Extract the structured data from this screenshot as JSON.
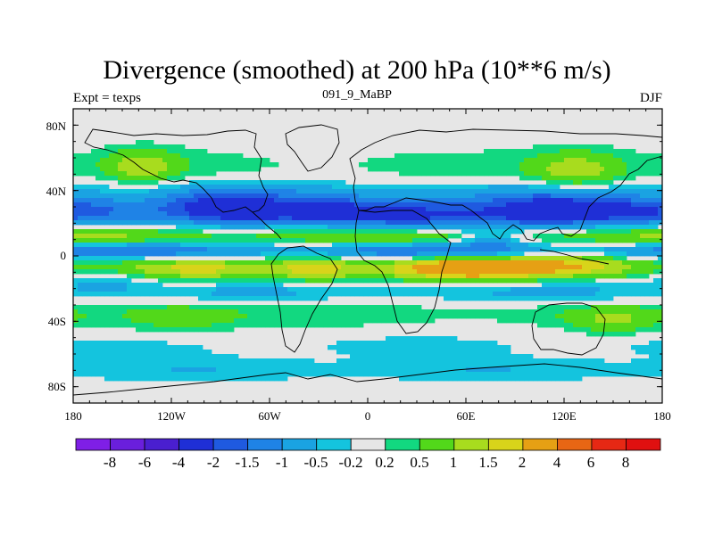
{
  "title": "Divergence (smoothed) at 200 hPa (10**6 m/s)",
  "subtitle_left": "Expt = texps",
  "subtitle_center": "091_9_MaBP",
  "subtitle_right": "DJF",
  "chart_data": {
    "type": "contour map",
    "variable": "Divergence (smoothed)",
    "level": "200 hPa",
    "units": "10**6 m/s",
    "x_ticks": [
      "180",
      "120W",
      "60W",
      "0",
      "60E",
      "120E",
      "180"
    ],
    "y_ticks": [
      "80N",
      "40N",
      "0",
      "40S",
      "80S"
    ],
    "x_range_deg": [
      -180,
      180
    ],
    "y_range_deg": [
      -90,
      90
    ],
    "colorbar": {
      "labels": [
        "-8",
        "-6",
        "-4",
        "-2",
        "-1.5",
        "-1",
        "-0.5",
        "-0.2",
        "0.2",
        "0.5",
        "1",
        "1.5",
        "2",
        "4",
        "6",
        "8"
      ],
      "colors": [
        "#7f1fe6",
        "#6a1fdc",
        "#4a1fd0",
        "#1f2fd6",
        "#1f5ae0",
        "#1f83e6",
        "#1aa3e2",
        "#14c4de",
        "#e6e6e6",
        "#12d880",
        "#52d81a",
        "#a8dc1e",
        "#d8d41a",
        "#e6a014",
        "#e86614",
        "#e62814",
        "#e01010"
      ]
    },
    "bands": [
      {
        "lat": 55,
        "width": 12,
        "strength": 0.35
      },
      {
        "lat": 38,
        "width": 8,
        "strength": -0.9
      },
      {
        "lat": 27,
        "width": 8,
        "strength": -2.3
      },
      {
        "lat": 12,
        "width": 5,
        "strength": 1.2
      },
      {
        "lat": 3,
        "width": 5,
        "strength": -1.6
      },
      {
        "lat": -8,
        "width": 7,
        "strength": 1.7
      },
      {
        "lat": -22,
        "width": 7,
        "strength": -0.7
      },
      {
        "lat": -35,
        "width": 9,
        "strength": 0.5
      },
      {
        "lat": -55,
        "width": 9,
        "strength": -0.3
      },
      {
        "lat": -70,
        "width": 7,
        "strength": -0.5
      }
    ],
    "blobs": [
      {
        "lon": -138,
        "lat": 55,
        "rlon": 22,
        "rlat": 10,
        "v": 1.1
      },
      {
        "lon": 128,
        "lat": 52,
        "rlon": 28,
        "rlat": 12,
        "v": 1.2
      },
      {
        "lon": -90,
        "lat": 30,
        "rlon": 30,
        "rlat": 10,
        "v": -1.2
      },
      {
        "lon": 40,
        "lat": 23,
        "rlon": 55,
        "rlat": 9,
        "v": -1.0
      },
      {
        "lon": 110,
        "lat": 28,
        "rlon": 30,
        "rlat": 10,
        "v": -0.8
      },
      {
        "lon": 63,
        "lat": -7,
        "rlon": 40,
        "rlat": 7,
        "v": 1.6
      },
      {
        "lon": 125,
        "lat": -4,
        "rlon": 35,
        "rlat": 7,
        "v": 1.1
      },
      {
        "lon": -30,
        "lat": -8,
        "rlon": 25,
        "rlat": 8,
        "v": 0.9
      },
      {
        "lon": -160,
        "lat": -12,
        "rlon": 30,
        "rlat": 8,
        "v": -0.9
      },
      {
        "lon": 150,
        "lat": -40,
        "rlon": 25,
        "rlat": 8,
        "v": 0.8
      },
      {
        "lon": -115,
        "lat": -38,
        "rlon": 35,
        "rlat": 10,
        "v": 0.6
      },
      {
        "lon": 75,
        "lat": 10,
        "rlon": 20,
        "rlat": 6,
        "v": -1.0
      }
    ]
  }
}
